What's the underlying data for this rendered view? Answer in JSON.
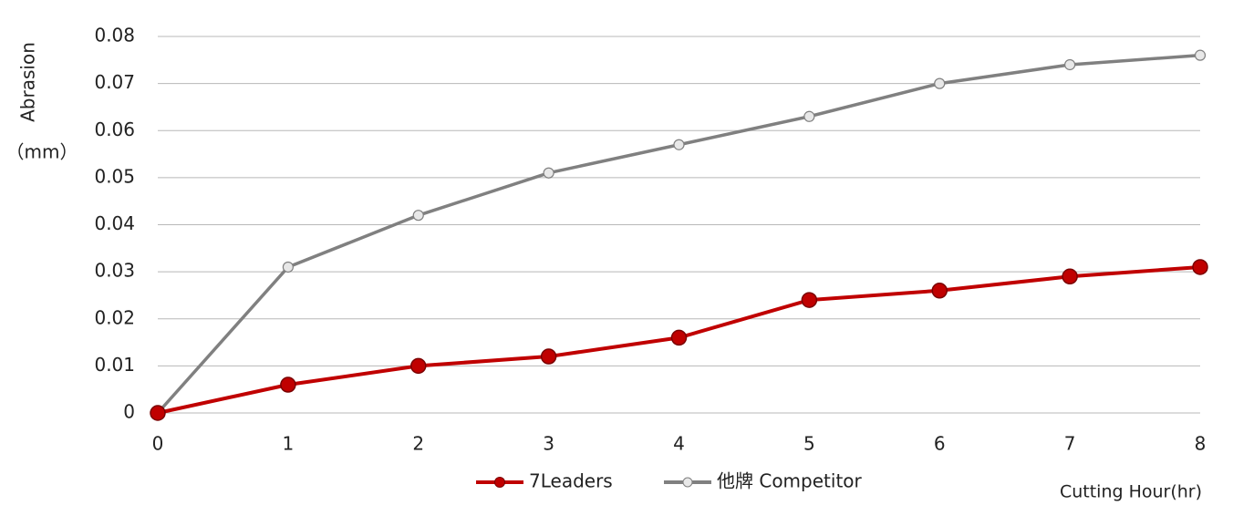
{
  "chart_data": {
    "type": "line",
    "y_label": "Abrasion",
    "y_unit": "（mm）",
    "x_label": "Cutting Hour(hr)",
    "x": [
      0,
      1,
      2,
      3,
      4,
      5,
      6,
      7,
      8
    ],
    "series": [
      {
        "name": "7Leaders",
        "color": "#c00000",
        "values": [
          0,
          0.006,
          0.01,
          0.012,
          0.016,
          0.024,
          0.026,
          0.029,
          0.031
        ]
      },
      {
        "name": "他牌 Competitor",
        "color": "#808080",
        "values": [
          0,
          0.031,
          0.042,
          0.051,
          0.057,
          0.063,
          0.07,
          0.074,
          0.076
        ]
      }
    ],
    "xlim": [
      0,
      8
    ],
    "xticks": [
      0,
      1,
      2,
      3,
      4,
      5,
      6,
      7,
      8
    ],
    "ylim": [
      0,
      0.08
    ],
    "yticks": [
      0,
      0.01,
      0.02,
      0.03,
      0.04,
      0.05,
      0.06,
      0.07,
      0.08
    ],
    "grid": true
  }
}
